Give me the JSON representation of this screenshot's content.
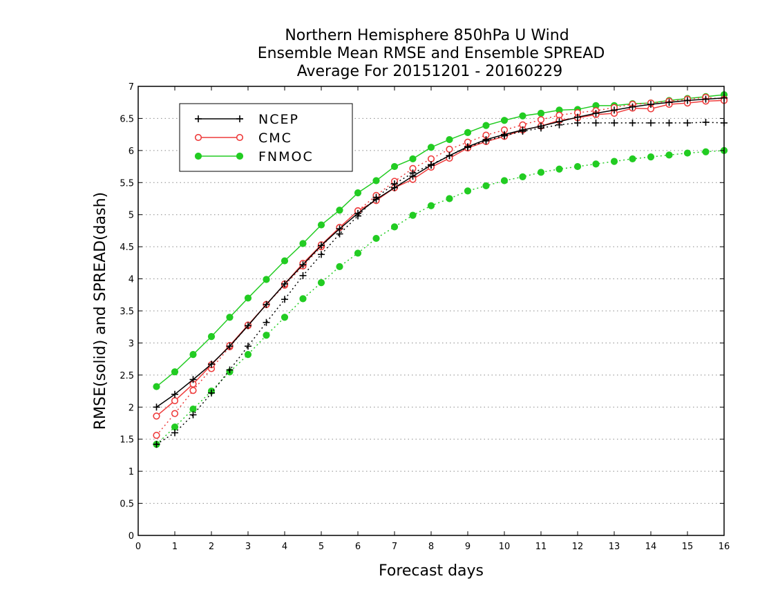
{
  "chart_data": {
    "type": "line",
    "title": [
      "Northern Hemisphere 850hPa U Wind",
      "Ensemble Mean RMSE and Ensemble SPREAD",
      "Average For 20151201 - 20160229"
    ],
    "xlabel": "Forecast days",
    "ylabel": "RMSE(solid) and SPREAD(dash)",
    "xlim": [
      0,
      16
    ],
    "ylim": [
      0,
      7
    ],
    "xticks": [
      0,
      1,
      2,
      3,
      4,
      5,
      6,
      7,
      8,
      9,
      10,
      11,
      12,
      13,
      14,
      15,
      16
    ],
    "yticks": [
      0,
      0.5,
      1,
      1.5,
      2,
      2.5,
      3,
      3.5,
      4,
      4.5,
      5,
      5.5,
      6,
      6.5,
      7
    ],
    "ytick_labels": [
      "0",
      "0.5",
      "1",
      "1.5",
      "2",
      "2.5",
      "3",
      "3.5",
      "4",
      "4.5",
      "5",
      "5.5",
      "6",
      "6.5",
      "7"
    ],
    "grid": "horizontal dotted",
    "legend_position": "top-left",
    "x": [
      0.5,
      1,
      1.5,
      2,
      2.5,
      3,
      3.5,
      4,
      4.5,
      5,
      5.5,
      6,
      6.5,
      7,
      7.5,
      8,
      8.5,
      9,
      9.5,
      10,
      10.5,
      11,
      11.5,
      12,
      12.5,
      13,
      13.5,
      14,
      14.5,
      15,
      15.5,
      16
    ],
    "series": [
      {
        "name": "NCEP",
        "color": "#000000",
        "marker": "plus",
        "rmse": [
          2.0,
          2.2,
          2.43,
          2.67,
          2.95,
          3.27,
          3.6,
          3.92,
          4.22,
          4.52,
          4.78,
          5.02,
          5.24,
          5.42,
          5.6,
          5.77,
          5.92,
          6.06,
          6.17,
          6.25,
          6.32,
          6.38,
          6.45,
          6.52,
          6.58,
          6.63,
          6.68,
          6.72,
          6.75,
          6.78,
          6.8,
          6.82
        ],
        "spread": [
          1.42,
          1.6,
          1.88,
          2.22,
          2.58,
          2.95,
          3.32,
          3.68,
          4.05,
          4.38,
          4.7,
          4.98,
          5.27,
          5.48,
          5.65,
          5.78,
          5.92,
          6.05,
          6.15,
          6.23,
          6.3,
          6.35,
          6.4,
          6.43,
          6.43,
          6.43,
          6.43,
          6.43,
          6.43,
          6.43,
          6.44,
          6.43
        ]
      },
      {
        "name": "CMC",
        "color": "#ee3b3b",
        "marker": "open-circle",
        "rmse": [
          1.86,
          2.1,
          2.36,
          2.66,
          2.96,
          3.28,
          3.6,
          3.92,
          4.24,
          4.53,
          4.8,
          5.06,
          5.22,
          5.42,
          5.55,
          5.74,
          5.88,
          6.04,
          6.14,
          6.22,
          6.32,
          6.38,
          6.47,
          6.51,
          6.56,
          6.58,
          6.66,
          6.65,
          6.72,
          6.74,
          6.77,
          6.78
        ],
        "spread": [
          1.56,
          1.9,
          2.26,
          2.6,
          2.94,
          3.27,
          3.6,
          3.9,
          4.2,
          4.5,
          4.8,
          5.06,
          5.3,
          5.52,
          5.72,
          5.87,
          6.02,
          6.13,
          6.24,
          6.32,
          6.4,
          6.48,
          6.55,
          6.59,
          6.62,
          6.67,
          6.72,
          6.74,
          6.77,
          6.8,
          6.83,
          6.8
        ]
      },
      {
        "name": "FNMOC",
        "color": "#22cc22",
        "marker": "filled-circle",
        "rmse": [
          2.32,
          2.55,
          2.82,
          3.1,
          3.4,
          3.7,
          3.99,
          4.28,
          4.55,
          4.84,
          5.07,
          5.34,
          5.53,
          5.75,
          5.87,
          6.05,
          6.17,
          6.28,
          6.39,
          6.47,
          6.54,
          6.58,
          6.63,
          6.64,
          6.7,
          6.7,
          6.73,
          6.74,
          6.78,
          6.81,
          6.84,
          6.87
        ],
        "spread": [
          1.42,
          1.69,
          1.97,
          2.25,
          2.55,
          2.82,
          3.12,
          3.4,
          3.69,
          3.94,
          4.19,
          4.4,
          4.63,
          4.81,
          4.99,
          5.14,
          5.25,
          5.37,
          5.45,
          5.53,
          5.59,
          5.66,
          5.71,
          5.75,
          5.79,
          5.83,
          5.87,
          5.9,
          5.93,
          5.96,
          5.98,
          6.0
        ]
      }
    ]
  }
}
